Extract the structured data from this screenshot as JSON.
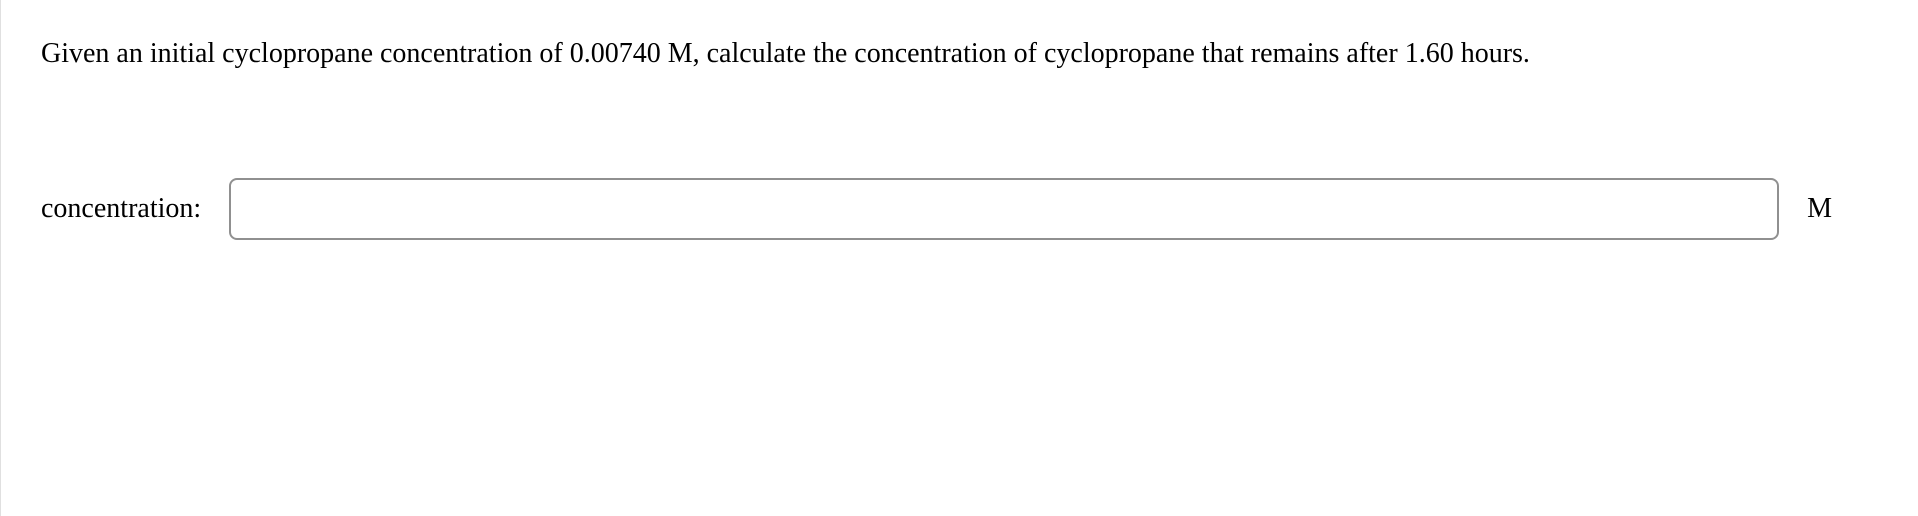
{
  "question": {
    "text": "Given an initial cyclopropane concentration of 0.00740 M, calculate the concentration of cyclopropane that remains after 1.60 hours."
  },
  "answer": {
    "label": "concentration:",
    "value": "",
    "unit": "M"
  },
  "styling": {
    "font_family": "Georgia, 'Times New Roman', Times, serif",
    "question_fontsize": 28,
    "label_fontsize": 28,
    "input_border_color": "#909090",
    "input_border_radius": 8,
    "background_color": "#ffffff",
    "text_color": "#000000",
    "left_border_color": "#e0e0e0"
  }
}
